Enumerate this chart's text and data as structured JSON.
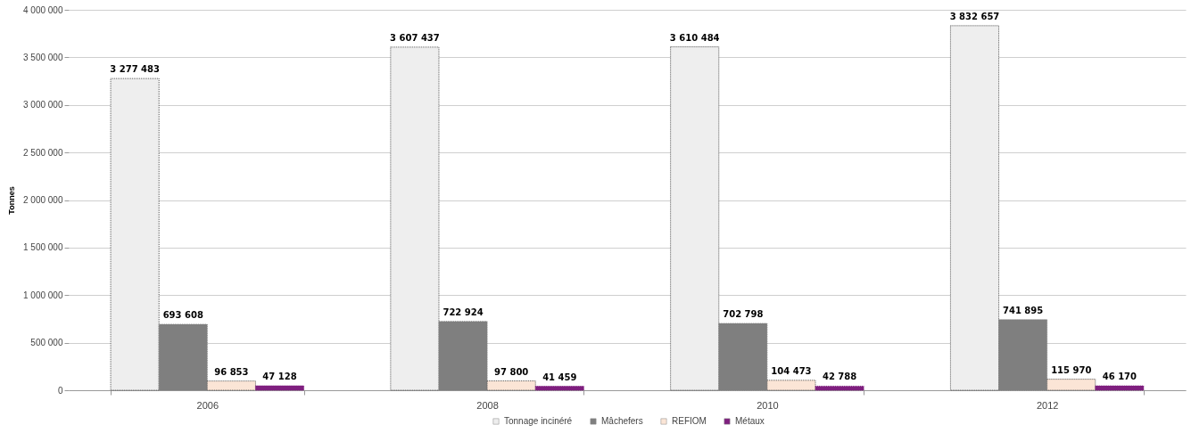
{
  "chart_data": {
    "type": "bar",
    "ylabel": "Tonnes",
    "categories": [
      "2006",
      "2008",
      "2010",
      "2012"
    ],
    "series": [
      {
        "name": "Tonnage incinéré",
        "color": "#eeeeee",
        "values": [
          3277483,
          3607437,
          3610484,
          3832657
        ],
        "value_labels": [
          "3 277 483",
          "3 607 437",
          "3 610 484",
          "3 832 657"
        ]
      },
      {
        "name": "Mâchefers",
        "color": "#7f7f7f",
        "values": [
          693608,
          722924,
          702798,
          741895
        ],
        "value_labels": [
          "693 608",
          "722 924",
          "702 798",
          "741 895"
        ]
      },
      {
        "name": "REFIOM",
        "color": "#fbe5d6",
        "values": [
          96853,
          97800,
          104473,
          115970
        ],
        "value_labels": [
          "96 853",
          "97 800",
          "104 473",
          "115 970"
        ]
      },
      {
        "name": "Métaux",
        "color": "#7f1f7f",
        "values": [
          47128,
          41459,
          42788,
          46170
        ],
        "value_labels": [
          "47 128",
          "41 459",
          "42 788",
          "46 170"
        ]
      }
    ],
    "ylim": [
      0,
      4000000
    ],
    "yticks": [
      0,
      {
        "value": 500000,
        "label": "500 000"
      },
      {
        "value": 1000000,
        "label": "1 000 000"
      },
      {
        "value": 1500000,
        "label": "1 500 000"
      },
      {
        "value": 2000000,
        "label": "2 000 000"
      },
      {
        "value": 2500000,
        "label": "2 500 000"
      },
      {
        "value": 3000000,
        "label": "3 000 000"
      },
      {
        "value": 3500000,
        "label": "3 500 000"
      },
      {
        "value": 4000000,
        "label": "4 000 000"
      }
    ],
    "grid": "y",
    "legend": "bottom"
  }
}
